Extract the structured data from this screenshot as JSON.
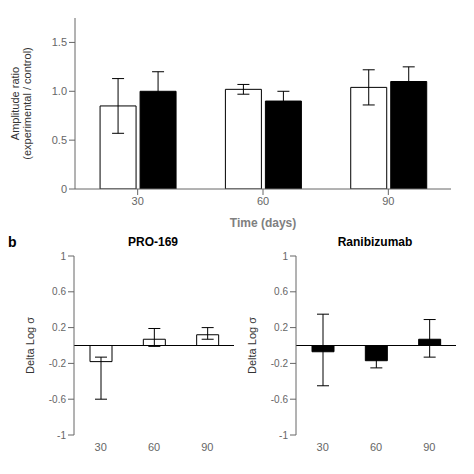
{
  "chart_data": [
    {
      "type": "bar",
      "categories": [
        "30",
        "60",
        "90"
      ],
      "series": [
        {
          "color": "white",
          "values": [
            0.85,
            1.02,
            1.04
          ],
          "error": [
            0.28,
            0.05,
            0.18
          ]
        },
        {
          "color": "black",
          "values": [
            1.0,
            0.9,
            1.1
          ],
          "error": [
            0.2,
            0.1,
            0.15
          ]
        }
      ],
      "x_label": "Time (days)",
      "y_label": "Amplitude ratio\n(experimental / control)",
      "ylim": [
        0,
        1.75
      ],
      "yticks": [
        0,
        0.5,
        {
          "value": 1,
          "label": "1.0"
        },
        1.5
      ]
    },
    {
      "type": "bar",
      "title": "PRO-169",
      "annotations": [
        "b"
      ],
      "categories": [
        "30",
        "60",
        "90"
      ],
      "values": [
        -0.18,
        0.07,
        0.12
      ],
      "error_minus": [
        0.42,
        0.08,
        0.05
      ],
      "error_plus": [
        0.05,
        0.12,
        0.08
      ],
      "color": "white",
      "y_label": "Delta Log σ",
      "ylim": [
        -1,
        1
      ],
      "yticks": [
        -1,
        -0.6,
        -0.2,
        0.2,
        0.6,
        1
      ]
    },
    {
      "type": "bar",
      "title": "Ranibizumab",
      "categories": [
        "30",
        "60",
        "90"
      ],
      "values": [
        -0.07,
        -0.17,
        0.07
      ],
      "error_minus": [
        0.38,
        0.08,
        0.2
      ],
      "error_plus": [
        0.42,
        0.07,
        0.22
      ],
      "color": "black",
      "y_label": "Delta Log σ",
      "ylim": [
        -1,
        1
      ],
      "yticks": [
        -1,
        -0.6,
        -0.2,
        0.2,
        0.6,
        1
      ]
    }
  ]
}
